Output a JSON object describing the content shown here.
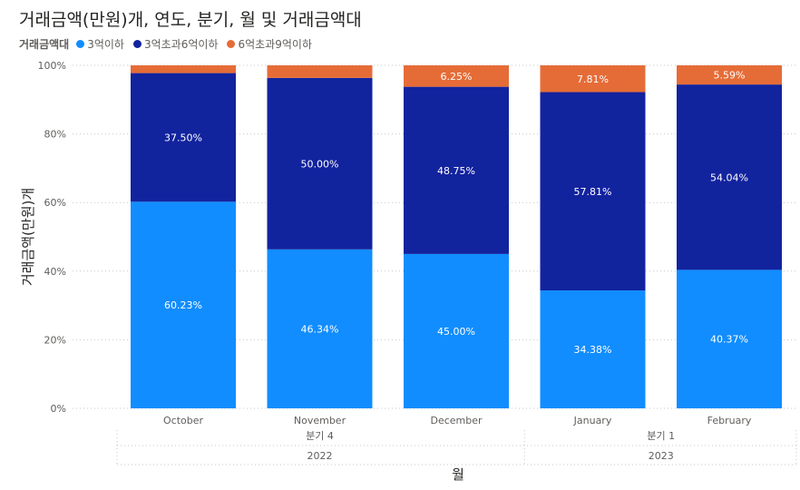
{
  "title": "거래금액(만원)개, 연도, 분기, 월 및 거래금액대",
  "legend": {
    "title": "거래금액대",
    "items": [
      {
        "label": "3억이하",
        "color": "#118DFF"
      },
      {
        "label": "3억초과6억이하",
        "color": "#12239E"
      },
      {
        "label": "6억초과9억이하",
        "color": "#E66C37"
      }
    ]
  },
  "chart_data": {
    "type": "bar",
    "stacked": "percent",
    "title": "거래금액(만원)개, 연도, 분기, 월 및 거래금액대",
    "xlabel": "월",
    "ylabel": "거래금액(만원)개",
    "ylim": [
      0,
      100
    ],
    "yticks": [
      "0%",
      "20%",
      "40%",
      "60%",
      "80%",
      "100%"
    ],
    "categories": [
      "October",
      "November",
      "December",
      "January",
      "February"
    ],
    "quarters": [
      {
        "label": "분기 4",
        "span": 3
      },
      {
        "label": "분기 1",
        "span": 2
      }
    ],
    "years": [
      {
        "label": "2022",
        "span": 3
      },
      {
        "label": "2023",
        "span": 2
      }
    ],
    "series": [
      {
        "name": "3억이하",
        "color": "#118DFF",
        "values": [
          60.23,
          46.34,
          45.0,
          34.38,
          40.37
        ],
        "labels": [
          "60.23%",
          "46.34%",
          "45.00%",
          "34.38%",
          "40.37%"
        ]
      },
      {
        "name": "3억초과6억이하",
        "color": "#12239E",
        "values": [
          37.5,
          50.0,
          48.75,
          57.81,
          54.04
        ],
        "labels": [
          "37.50%",
          "50.00%",
          "48.75%",
          "57.81%",
          "54.04%"
        ]
      },
      {
        "name": "6억초과9억이하",
        "color": "#E66C37",
        "values": [
          2.27,
          3.66,
          6.25,
          7.81,
          5.59
        ],
        "labels": [
          "",
          "",
          "6.25%",
          "7.81%",
          "5.59%"
        ]
      }
    ],
    "grid": true,
    "legend_position": "top-left"
  }
}
